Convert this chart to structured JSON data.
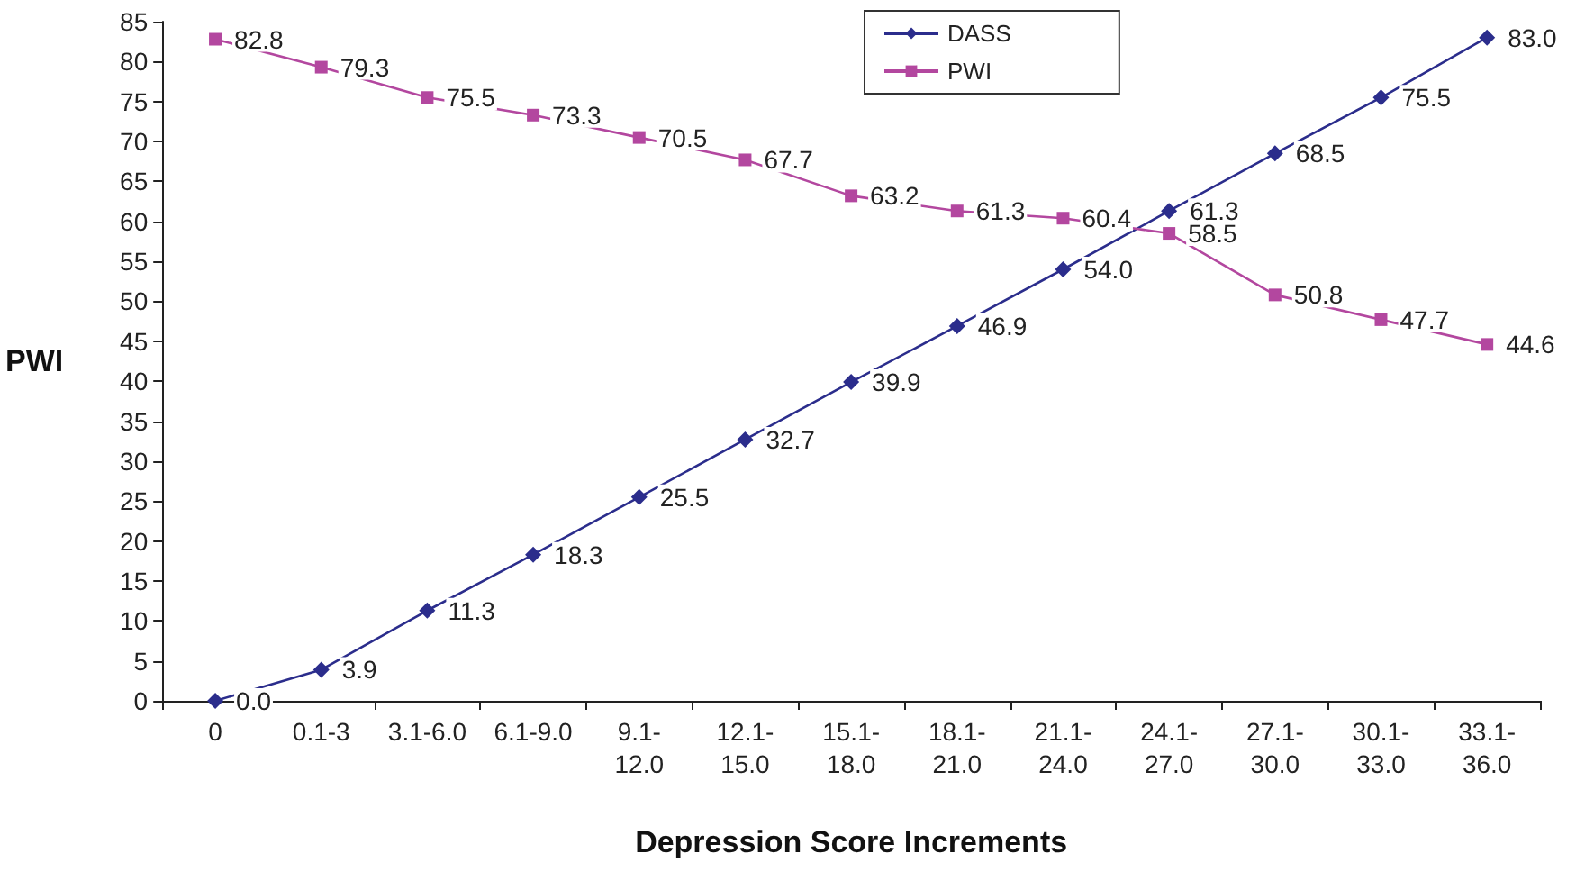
{
  "chart_data": {
    "type": "line",
    "xlabel": "Depression Score Increments",
    "ylabel": "PWI",
    "categories": [
      "0",
      "0.1-3",
      "3.1-6.0",
      "6.1-9.0",
      "9.1-12.0",
      "12.1-15.0",
      "15.1-18.0",
      "18.1-21.0",
      "21.1-24.0",
      "24.1-27.0",
      "27.1-30.0",
      "30.1-33.0",
      "33.1-36.0"
    ],
    "series": [
      {
        "name": "DASS",
        "color": "#2b2d8c",
        "marker": "diamond",
        "values": [
          0.0,
          3.9,
          11.3,
          18.3,
          25.5,
          32.7,
          39.9,
          46.9,
          54.0,
          61.3,
          68.5,
          75.5,
          83.0
        ],
        "value_labels": [
          "0.0",
          "3.9",
          "11.3",
          "18.3",
          "25.5",
          "32.7",
          "39.9",
          "46.9",
          "54.0",
          "61.3",
          "68.5",
          "75.5",
          "83.0"
        ]
      },
      {
        "name": "PWI",
        "color": "#b3479f",
        "marker": "square",
        "values": [
          82.8,
          79.3,
          75.5,
          73.3,
          70.5,
          67.7,
          63.2,
          61.3,
          60.4,
          58.5,
          50.8,
          47.7,
          44.6
        ],
        "value_labels": [
          "82.8",
          "79.3",
          "75.5",
          "73.3",
          "70.5",
          "67.7",
          "63.2",
          "61.3",
          "60.4",
          "58.5",
          "50.8",
          "47.7",
          "44.6"
        ]
      }
    ],
    "ylim": [
      0,
      85
    ],
    "yticks": [
      0,
      5,
      10,
      15,
      20,
      25,
      30,
      35,
      40,
      45,
      50,
      55,
      60,
      65,
      70,
      75,
      80,
      85
    ],
    "grid": false,
    "legend": "top",
    "line_style": "solid"
  }
}
